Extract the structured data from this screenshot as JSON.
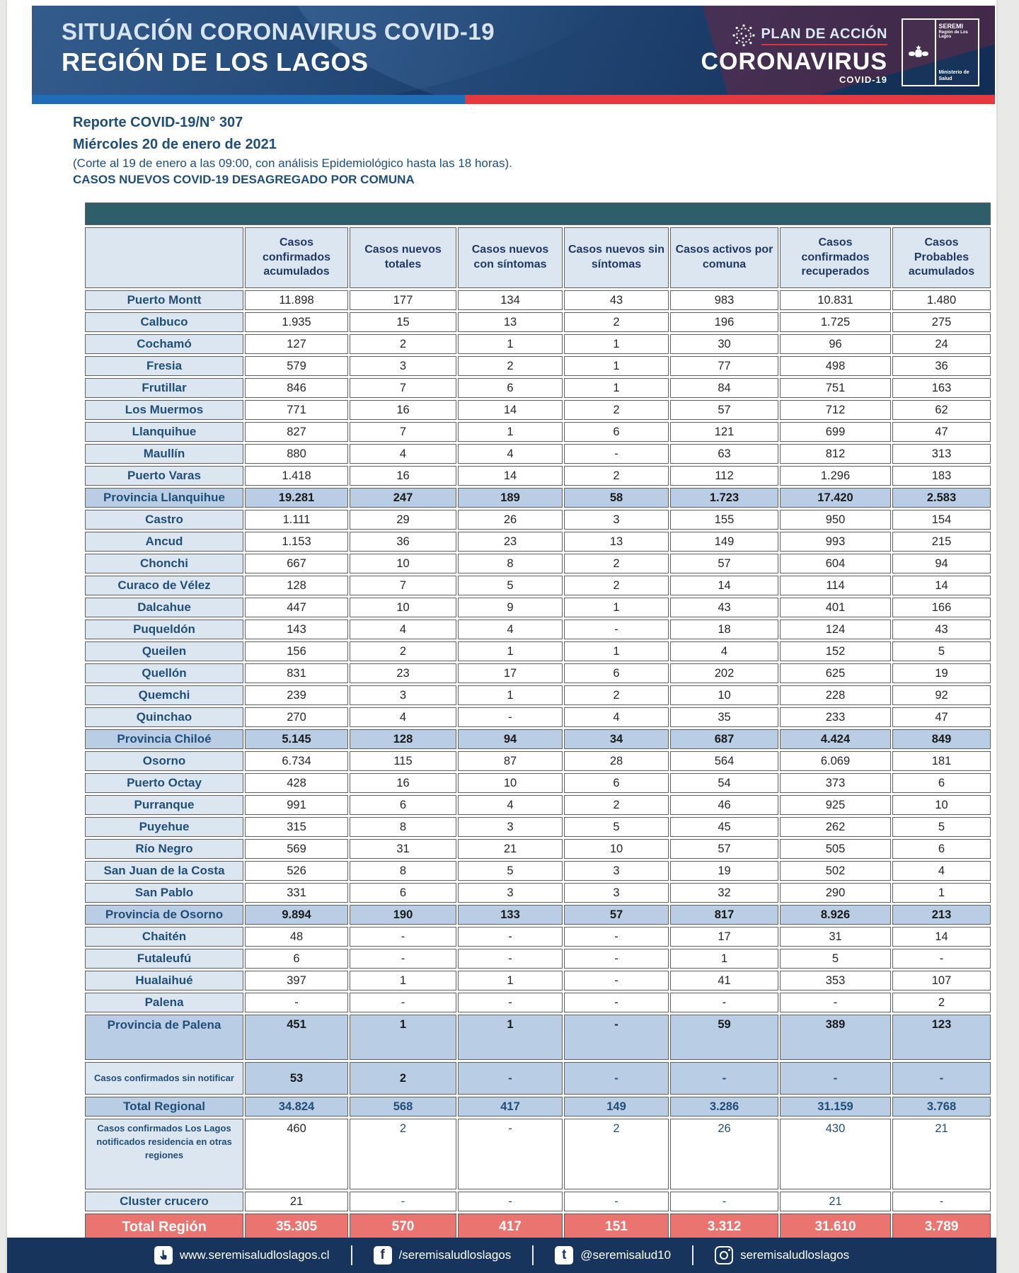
{
  "header": {
    "title_line1": "SITUACIÓN CORONAVIRUS COVID-19",
    "title_line2": "REGIÓN DE LOS LAGOS",
    "plan_label": "PLAN DE ACCIÓN",
    "plan_brand": "CORONAVIRUS",
    "plan_sub": "COVID-19",
    "seremi_title": "SEREMI",
    "seremi_region": "Región de Los Lagos",
    "seremi_ministry": "Ministerio de Salud"
  },
  "report": {
    "line1": "Reporte COVID-19/N° 307",
    "line2": "Miércoles 20 de enero de 2021",
    "line3": "(Corte al 19 de enero a las 09:00, con análisis Epidemiológico hasta las 18 horas).",
    "line4": "CASOS NUEVOS COVID-19 DESAGREGADO POR COMUNA"
  },
  "table": {
    "columns": [
      "",
      "Casos confirmados acumulados",
      "Casos nuevos totales",
      "Casos nuevos con síntomas",
      "Casos nuevos sin síntomas",
      "Casos activos por comuna",
      "Casos confirmados recuperados",
      "Casos Probables acumulados"
    ],
    "rows": [
      {
        "label": "Puerto Montt",
        "type": "commune",
        "values": [
          "11.898",
          "177",
          "134",
          "43",
          "983",
          "10.831",
          "1.480"
        ]
      },
      {
        "label": "Calbuco",
        "type": "commune",
        "values": [
          "1.935",
          "15",
          "13",
          "2",
          "196",
          "1.725",
          "275"
        ]
      },
      {
        "label": "Cochamó",
        "type": "commune",
        "values": [
          "127",
          "2",
          "1",
          "1",
          "30",
          "96",
          "24"
        ]
      },
      {
        "label": "Fresia",
        "type": "commune",
        "values": [
          "579",
          "3",
          "2",
          "1",
          "77",
          "498",
          "36"
        ]
      },
      {
        "label": "Frutillar",
        "type": "commune",
        "values": [
          "846",
          "7",
          "6",
          "1",
          "84",
          "751",
          "163"
        ]
      },
      {
        "label": "Los Muermos",
        "type": "commune",
        "values": [
          "771",
          "16",
          "14",
          "2",
          "57",
          "712",
          "62"
        ]
      },
      {
        "label": "Llanquihue",
        "type": "commune",
        "values": [
          "827",
          "7",
          "1",
          "6",
          "121",
          "699",
          "47"
        ]
      },
      {
        "label": "Maullín",
        "type": "commune",
        "values": [
          "880",
          "4",
          "4",
          "-",
          "63",
          "812",
          "313"
        ]
      },
      {
        "label": "Puerto Varas",
        "type": "commune",
        "values": [
          "1.418",
          "16",
          "14",
          "2",
          "112",
          "1.296",
          "183"
        ]
      },
      {
        "label": "Provincia Llanquihue",
        "type": "province",
        "values": [
          "19.281",
          "247",
          "189",
          "58",
          "1.723",
          "17.420",
          "2.583"
        ]
      },
      {
        "label": "Castro",
        "type": "commune",
        "values": [
          "1.111",
          "29",
          "26",
          "3",
          "155",
          "950",
          "154"
        ]
      },
      {
        "label": "Ancud",
        "type": "commune",
        "values": [
          "1.153",
          "36",
          "23",
          "13",
          "149",
          "993",
          "215"
        ]
      },
      {
        "label": "Chonchi",
        "type": "commune",
        "values": [
          "667",
          "10",
          "8",
          "2",
          "57",
          "604",
          "94"
        ]
      },
      {
        "label": "Curaco de Vélez",
        "type": "commune",
        "values": [
          "128",
          "7",
          "5",
          "2",
          "14",
          "114",
          "14"
        ]
      },
      {
        "label": "Dalcahue",
        "type": "commune",
        "values": [
          "447",
          "10",
          "9",
          "1",
          "43",
          "401",
          "166"
        ]
      },
      {
        "label": "Puqueldón",
        "type": "commune",
        "values": [
          "143",
          "4",
          "4",
          "-",
          "18",
          "124",
          "43"
        ]
      },
      {
        "label": "Queilen",
        "type": "commune",
        "values": [
          "156",
          "2",
          "1",
          "1",
          "4",
          "152",
          "5"
        ]
      },
      {
        "label": "Quellón",
        "type": "commune",
        "values": [
          "831",
          "23",
          "17",
          "6",
          "202",
          "625",
          "19"
        ]
      },
      {
        "label": "Quemchi",
        "type": "commune",
        "values": [
          "239",
          "3",
          "1",
          "2",
          "10",
          "228",
          "92"
        ]
      },
      {
        "label": "Quinchao",
        "type": "commune",
        "values": [
          "270",
          "4",
          "-",
          "4",
          "35",
          "233",
          "47"
        ]
      },
      {
        "label": "Provincia Chiloé",
        "type": "province",
        "values": [
          "5.145",
          "128",
          "94",
          "34",
          "687",
          "4.424",
          "849"
        ]
      },
      {
        "label": "Osorno",
        "type": "commune",
        "values": [
          "6.734",
          "115",
          "87",
          "28",
          "564",
          "6.069",
          "181"
        ]
      },
      {
        "label": "Puerto Octay",
        "type": "commune",
        "values": [
          "428",
          "16",
          "10",
          "6",
          "54",
          "373",
          "6"
        ]
      },
      {
        "label": "Purranque",
        "type": "commune",
        "values": [
          "991",
          "6",
          "4",
          "2",
          "46",
          "925",
          "10"
        ]
      },
      {
        "label": "Puyehue",
        "type": "commune",
        "values": [
          "315",
          "8",
          "3",
          "5",
          "45",
          "262",
          "5"
        ]
      },
      {
        "label": "Río Negro",
        "type": "commune",
        "values": [
          "569",
          "31",
          "21",
          "10",
          "57",
          "505",
          "6"
        ]
      },
      {
        "label": "San Juan de la Costa",
        "type": "commune",
        "values": [
          "526",
          "8",
          "5",
          "3",
          "19",
          "502",
          "4"
        ]
      },
      {
        "label": "San Pablo",
        "type": "commune",
        "values": [
          "331",
          "6",
          "3",
          "3",
          "32",
          "290",
          "1"
        ]
      },
      {
        "label": "Provincia de Osorno",
        "type": "province",
        "values": [
          "9.894",
          "190",
          "133",
          "57",
          "817",
          "8.926",
          "213"
        ]
      },
      {
        "label": "Chaitén",
        "type": "commune",
        "values": [
          "48",
          "-",
          "-",
          "-",
          "17",
          "31",
          "14"
        ]
      },
      {
        "label": "Futaleufú",
        "type": "commune",
        "values": [
          "6",
          "-",
          "-",
          "-",
          "1",
          "5",
          "-"
        ]
      },
      {
        "label": "Hualaihué",
        "type": "commune",
        "values": [
          "397",
          "1",
          "1",
          "-",
          "41",
          "353",
          "107"
        ]
      },
      {
        "label": "Palena",
        "type": "commune",
        "values": [
          "-",
          "-",
          "-",
          "-",
          "-",
          "-",
          "2"
        ]
      },
      {
        "label": "Provincia de Palena",
        "type": "province tall-province",
        "values": [
          "451",
          "1",
          "1",
          "-",
          "59",
          "389",
          "123"
        ]
      },
      {
        "label": "Casos confirmados sin notificar",
        "type": "blue-note",
        "values": [
          "53",
          "2",
          "-",
          "-",
          "-",
          "-",
          "-"
        ]
      },
      {
        "label": "Total Regional",
        "type": "total-regional",
        "values": [
          "34.824",
          "568",
          "417",
          "149",
          "3.286",
          "31.159",
          "3.768"
        ]
      },
      {
        "label": "Casos confirmados Los Lagos  notificados residencia en otras regiones",
        "type": "white-note tall-note",
        "values": [
          "460",
          "2",
          "-",
          "2",
          "26",
          "430",
          "21"
        ]
      },
      {
        "label": "Cluster crucero",
        "type": "white-note cluster",
        "values": [
          "21",
          "-",
          "-",
          "-",
          "-",
          "21",
          "-"
        ]
      },
      {
        "label": "Total Región",
        "type": "total-region",
        "values": [
          "35.305",
          "570",
          "417",
          "151",
          "3.312",
          "31.610",
          "3.789"
        ]
      }
    ]
  },
  "footer": {
    "items": [
      {
        "icon": "cursor-hand-icon",
        "text": "www.seremisaludloslagos.cl"
      },
      {
        "icon": "facebook-icon",
        "glyph": "f",
        "text": "/seremisaludloslagos"
      },
      {
        "icon": "twitter-icon",
        "glyph": "t",
        "text": "@seremisalud10"
      },
      {
        "icon": "instagram-icon",
        "text": "seremisaludloslagos"
      }
    ]
  },
  "colors": {
    "banner_navy": "#173a68",
    "stripe_blue": "#1e6db6",
    "stripe_red": "#e5383f",
    "teal_band": "#2d5e69",
    "header_cell": "#dce6f1",
    "province_row": "#b9cde4",
    "total_row_red": "#e97470",
    "text_navy": "#1f4e79",
    "footer_navy": "#17345c"
  }
}
